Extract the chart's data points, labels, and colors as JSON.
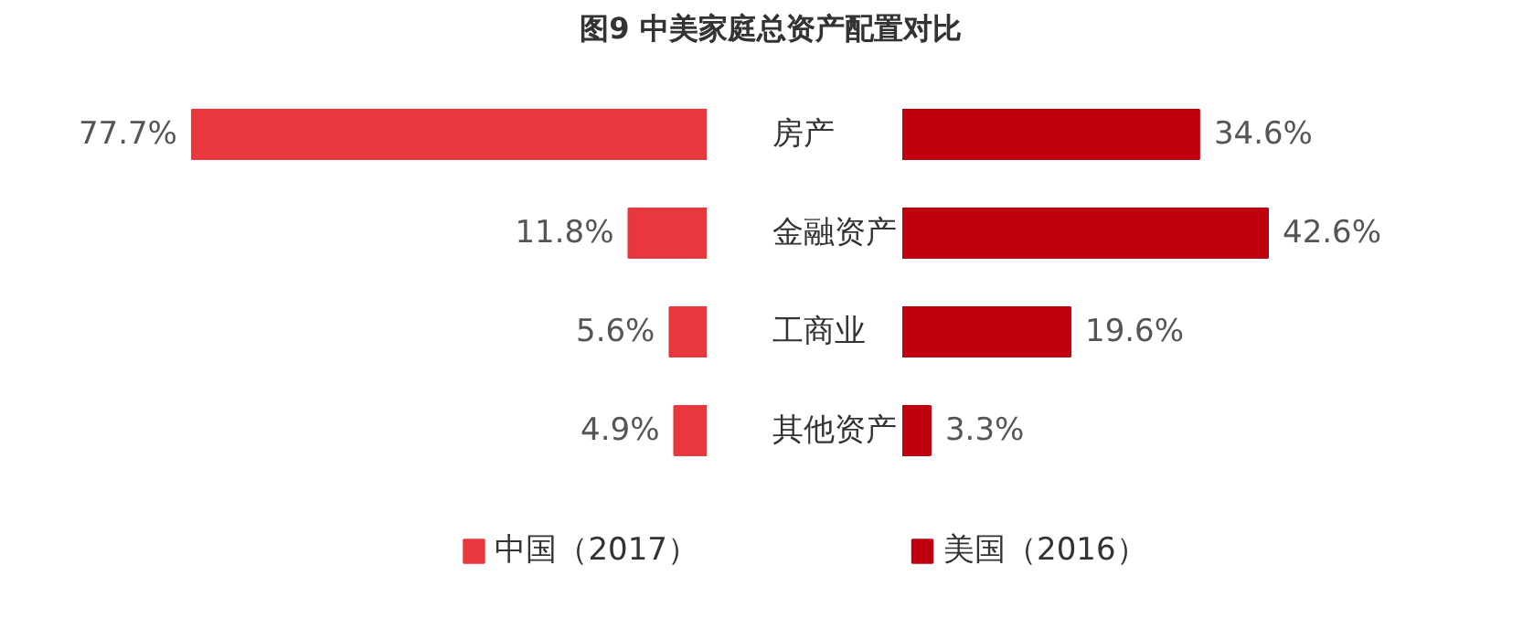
{
  "chart_data": [
    {
      "type": "bar",
      "orientation": "horizontal",
      "title": "图9 中美家庭总资产配置对比",
      "categories": [
        "房产",
        "金融资产",
        "工商业",
        "其他资产"
      ],
      "tick_labels": "y",
      "legend": "bottom",
      "series": [
        {
          "name": "中国（2017）",
          "color": "#e8383d",
          "values": [
            77.7,
            11.8,
            5.6,
            4.9
          ],
          "value_labels": [
            "77.7%",
            "11.8%",
            "5.6%",
            "4.9%"
          ]
        }
      ]
    },
    {
      "type": "bar",
      "orientation": "horizontal",
      "categories": [
        null,
        null,
        null,
        null
      ],
      "tick_labels": false,
      "legend": "bottom",
      "series": [
        {
          "name": "美国（2016）",
          "color": "#c0000f",
          "values": [
            34.6,
            42.6,
            19.6,
            3.3
          ],
          "value_labels": [
            "34.6%",
            "42.6%",
            "19.6%",
            "3.3%"
          ]
        }
      ]
    }
  ]
}
